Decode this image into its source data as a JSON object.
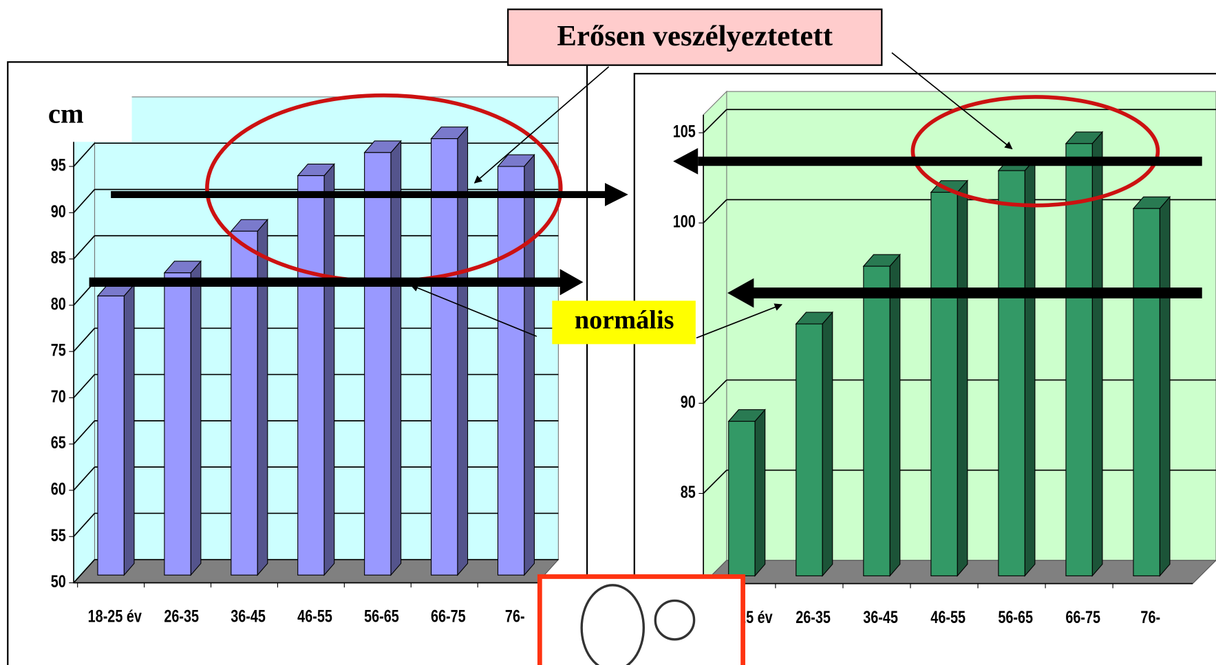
{
  "annotations": [
    "Erősen veszélyeztetett",
    "normális"
  ],
  "chart_data": [
    {
      "type": "bar3d",
      "y_label": "cm",
      "categories": [
        "18-25 év",
        "26-35",
        "36-45",
        "46-55",
        "56-65",
        "66-75",
        "76-"
      ],
      "values": [
        81,
        83.5,
        88,
        94,
        96.5,
        98,
        95
      ],
      "color": "#9999ff",
      "ylim": [
        50,
        100
      ],
      "yticks": [
        50,
        55,
        60,
        65,
        70,
        75,
        80,
        85,
        90,
        95
      ],
      "grid": true
    },
    {
      "type": "bar3d",
      "categories": [
        "18-25 év",
        "26-35",
        "36-45",
        "46-55",
        "56-65",
        "66-75",
        "76-"
      ],
      "values": [
        89,
        94.4,
        97.6,
        101.7,
        102.9,
        104.4,
        100.8
      ],
      "color": "#339966",
      "ylim": [
        80,
        106
      ],
      "yticks": [
        85,
        90,
        100,
        105
      ],
      "grid": true
    }
  ]
}
